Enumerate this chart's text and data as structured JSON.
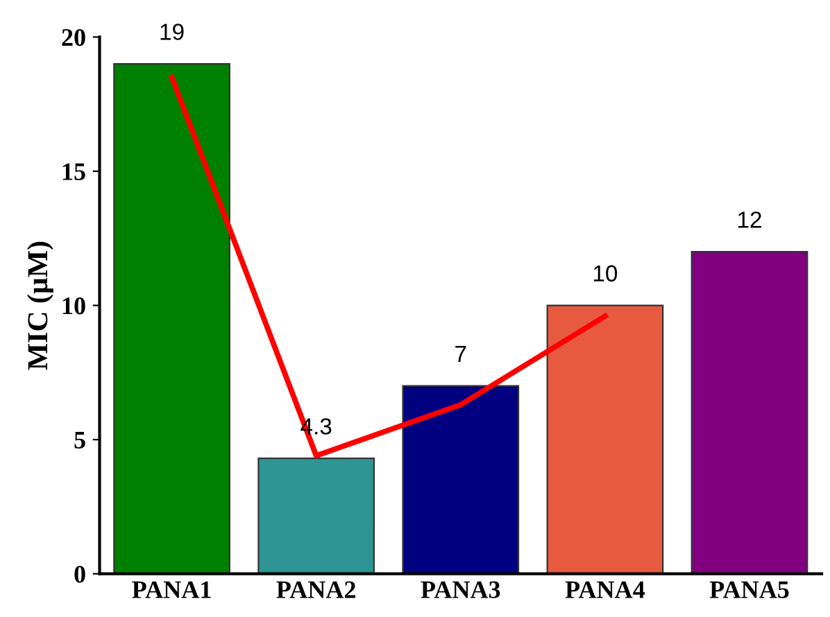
{
  "chart_data": {
    "type": "bar",
    "ylabel": "MIC (µM)",
    "categories": [
      "PANA1",
      "PANA2",
      "PANA3",
      "PANA4",
      "PANA5"
    ],
    "ylim": [
      0,
      20
    ],
    "yticks": [
      0,
      5,
      10,
      15,
      20
    ],
    "grid": false,
    "legend": false,
    "series": [
      {
        "values": [
          19,
          4.3,
          7,
          10,
          12
        ],
        "colors": [
          "#008000",
          "#2f9494",
          "#000080",
          "#e85a40",
          "#800080"
        ],
        "value_labels": [
          "19",
          "4.3",
          "7",
          "10",
          "12"
        ]
      },
      {
        "type": "line",
        "color": "#ff0000",
        "values": [
          18.5,
          4.4,
          6.3,
          9.6,
          null
        ],
        "line_style": "solid",
        "marker": "none"
      }
    ]
  }
}
